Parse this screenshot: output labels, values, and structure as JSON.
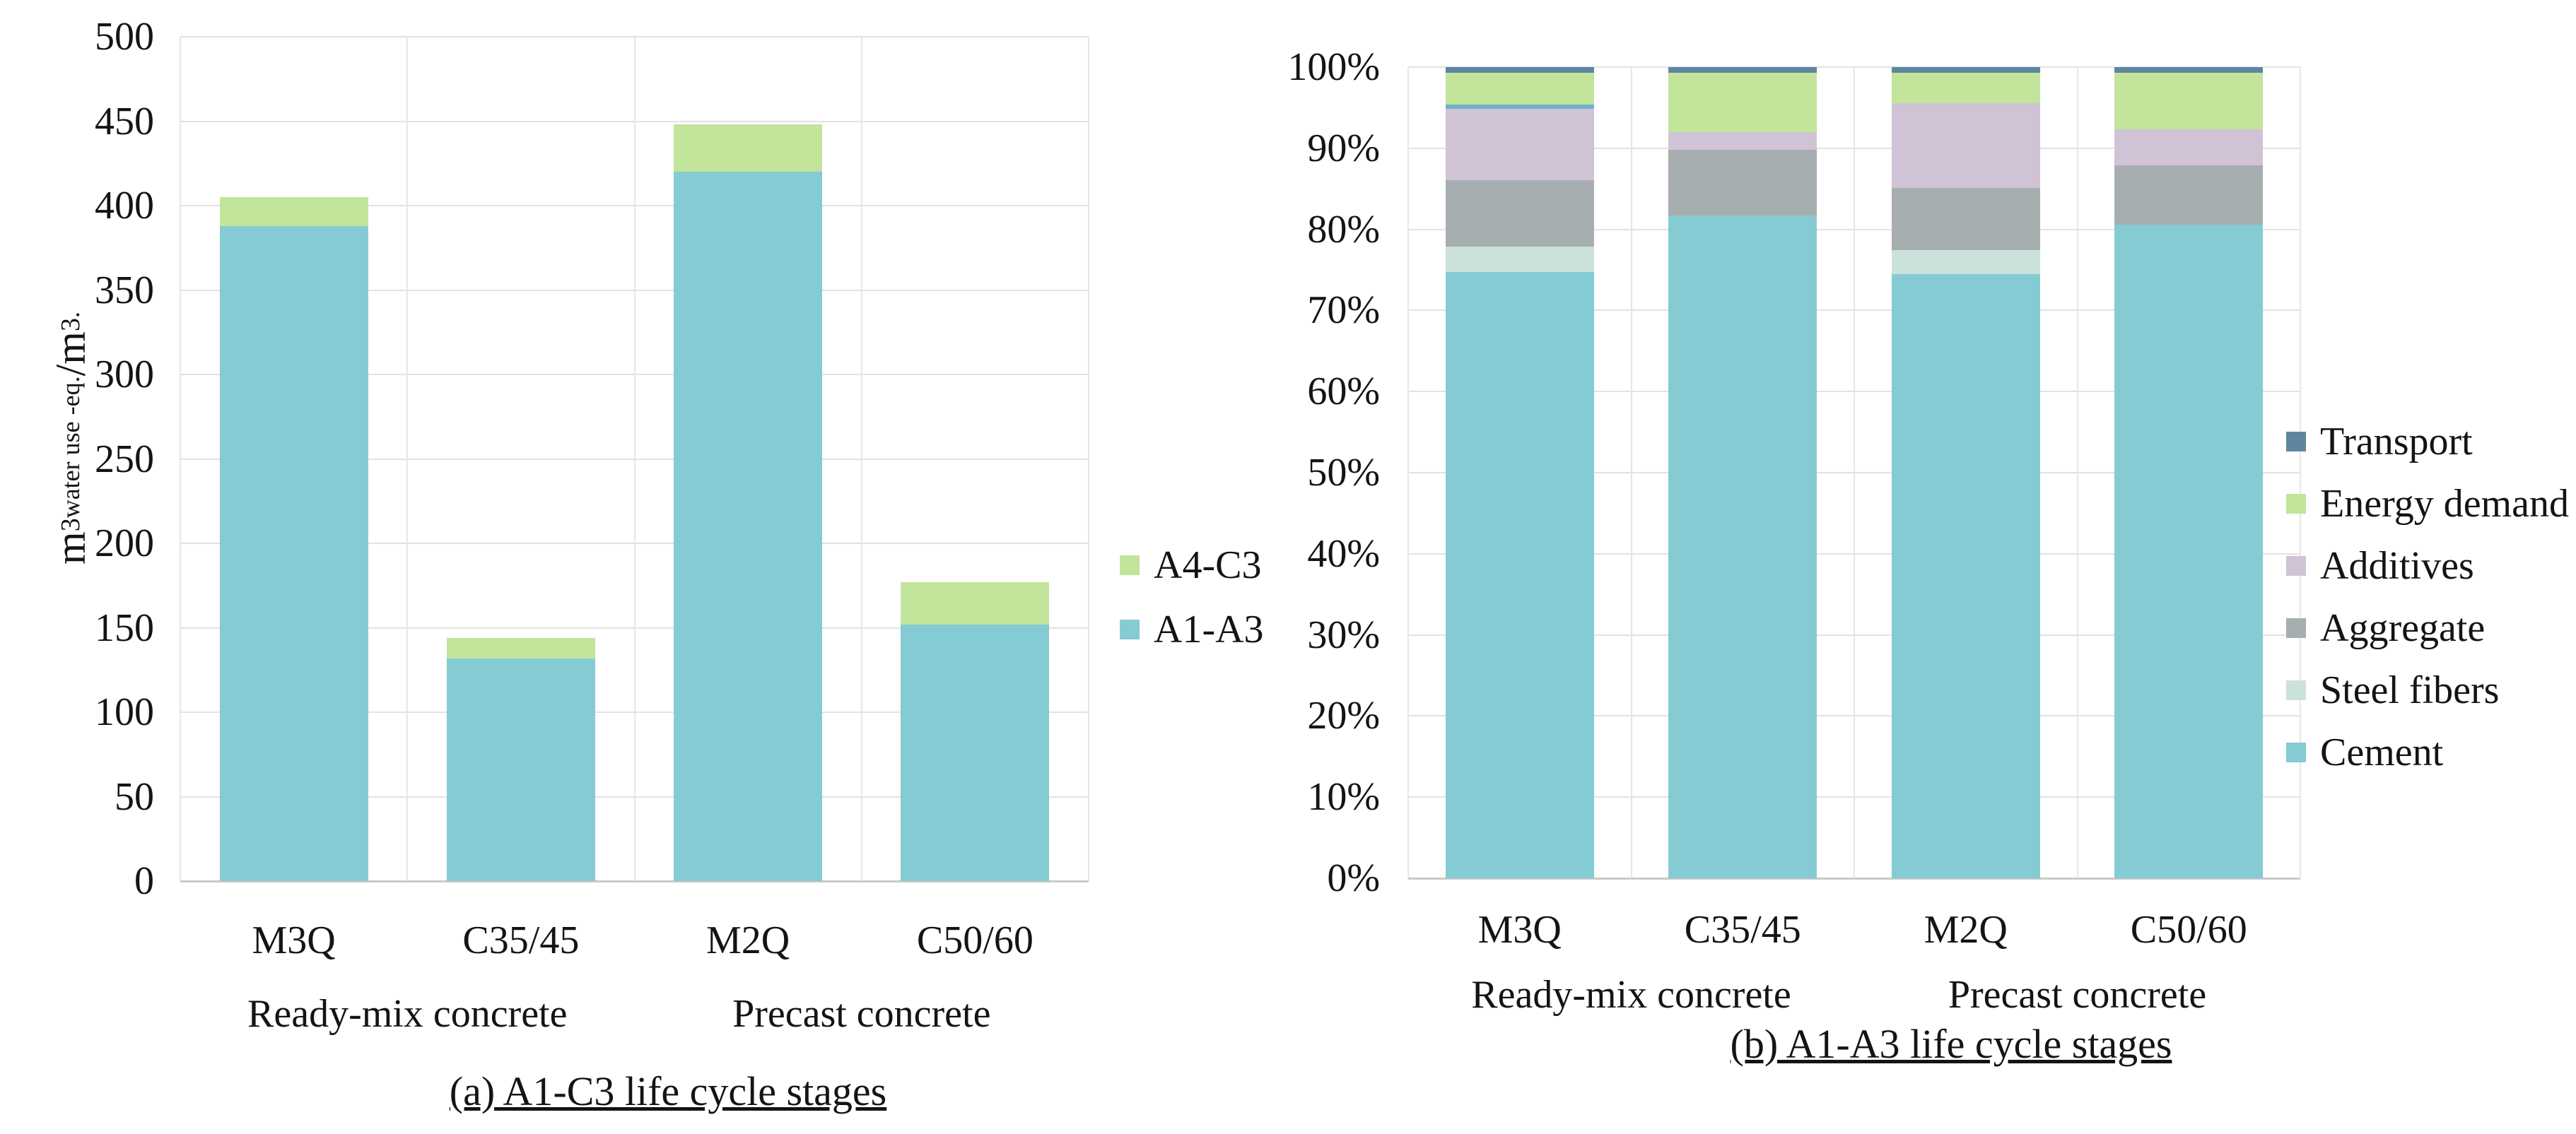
{
  "background": "#ffffff",
  "chart_data": [
    {
      "id": "a",
      "type": "bar",
      "stacked": true,
      "title": "(a) A1-C3 life cycle stages",
      "ylabel": "m³ water use -eq. /m³ .",
      "ylabel_parts": [
        {
          "text": "m",
          "style": "main"
        },
        {
          "text": "3",
          "style": "sup"
        },
        {
          "text": "water use -eq. ",
          "style": "sub"
        },
        {
          "text": "/m",
          "style": "main"
        },
        {
          "text": "3",
          "style": "sup"
        },
        {
          "text": " .",
          "style": "sub"
        }
      ],
      "ylim": [
        0,
        500
      ],
      "ytick_step": 50,
      "yticks": [
        "0",
        "50",
        "100",
        "150",
        "200",
        "250",
        "300",
        "350",
        "400",
        "450",
        "500"
      ],
      "grid": true,
      "categories": [
        "M3Q",
        "C35/45",
        "M2Q",
        "C50/60"
      ],
      "category_groups": [
        {
          "label": "Ready-mix concrete",
          "spans": [
            "M3Q",
            "C35/45"
          ]
        },
        {
          "label": "Precast concrete",
          "spans": [
            "M2Q",
            "C50/60"
          ]
        }
      ],
      "series": [
        {
          "name": "A1-A3",
          "color": "#85cbd3",
          "values": [
            388,
            132,
            420,
            152
          ]
        },
        {
          "name": "A4-C3",
          "color": "#c2e49b",
          "values": [
            17,
            12,
            28,
            25
          ]
        }
      ],
      "stack_totals": [
        405,
        144,
        448,
        177
      ],
      "legend_position": "right",
      "legend_order": [
        "A4-C3",
        "A1-A3"
      ]
    },
    {
      "id": "b",
      "type": "bar",
      "stacked": true,
      "percent": true,
      "title": "(b) A1-A3 life cycle stages",
      "ylabel": "",
      "ylim": [
        0,
        100
      ],
      "ytick_step": 10,
      "yticks": [
        "0%",
        "10%",
        "20%",
        "30%",
        "40%",
        "50%",
        "60%",
        "70%",
        "80%",
        "90%",
        "100%"
      ],
      "grid": true,
      "categories": [
        "M3Q",
        "C35/45",
        "M2Q",
        "C50/60"
      ],
      "category_groups": [
        {
          "label": "Ready-mix concrete",
          "spans": [
            "M3Q",
            "C35/45"
          ]
        },
        {
          "label": "Precast concrete",
          "spans": [
            "M2Q",
            "C50/60"
          ]
        }
      ],
      "series": [
        {
          "name": "Cement",
          "color": "#85cbd3",
          "values": [
            74.7,
            81.7,
            74.5,
            80.6
          ]
        },
        {
          "name": "Steel fibers",
          "color": "#cbe2da",
          "values": [
            3.2,
            0,
            2.9,
            0
          ]
        },
        {
          "name": "Aggregate",
          "color": "#a7aeb0",
          "values": [
            8.2,
            8.1,
            7.7,
            7.3
          ]
        },
        {
          "name": "Additives",
          "color": "#cfc3d5",
          "values": [
            8.8,
            2.2,
            10.5,
            4.4
          ]
        },
        {
          "name": "",
          "color": "#6fb1ce",
          "values": [
            0.5,
            0,
            0,
            0
          ],
          "note": "thin unlabeled blue segment visible only in M3Q bar"
        },
        {
          "name": "Energy demand",
          "color": "#c2e49b",
          "values": [
            3.9,
            7.3,
            3.7,
            7.0
          ]
        },
        {
          "name": "Transport",
          "color": "#5e86a0",
          "values": [
            0.7,
            0.7,
            0.7,
            0.7
          ]
        }
      ],
      "legend_position": "right",
      "legend_order": [
        "Transport",
        "Energy demand",
        "Additives",
        "Aggregate",
        "Steel fibers",
        "Cement"
      ]
    }
  ]
}
